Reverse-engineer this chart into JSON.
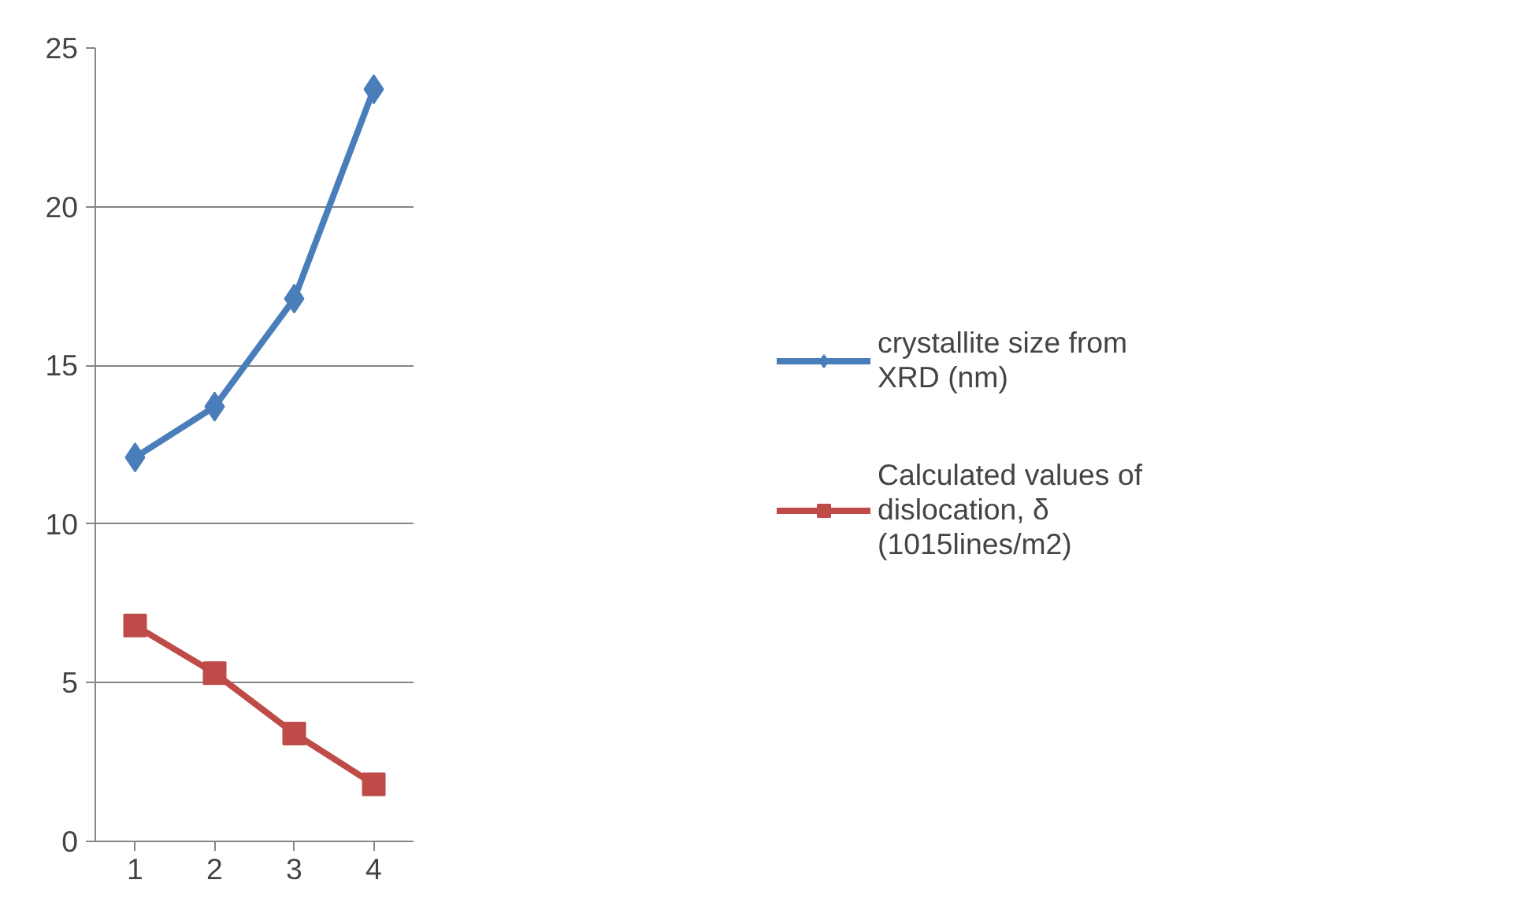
{
  "chart_data": {
    "type": "line",
    "categories": [
      "1",
      "2",
      "3",
      "4"
    ],
    "series": [
      {
        "name": "crystallite size from XRD (nm)",
        "color": "#4a7ebb",
        "marker": "diamond",
        "values": [
          12.1,
          13.7,
          17.1,
          23.7
        ]
      },
      {
        "name": "Calculated values of dislocation, δ (1015lines/m2)",
        "color": "#be4b48",
        "marker": "square",
        "values": [
          6.8,
          5.3,
          3.4,
          1.8
        ]
      }
    ],
    "ylim": [
      0,
      25
    ],
    "yticks": [
      0,
      5,
      10,
      15,
      20,
      25
    ],
    "grid": "y",
    "legend": "right",
    "line_style": "solid"
  }
}
